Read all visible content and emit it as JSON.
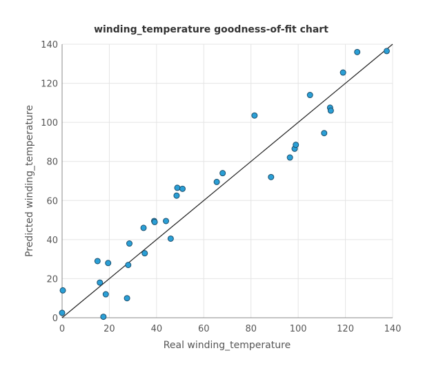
{
  "chart_data": {
    "type": "scatter",
    "title": "winding_temperature goodness-of-fit chart",
    "xlabel": "Real winding_temperature",
    "ylabel": "Predicted winding_temperature",
    "xlim": [
      0,
      140
    ],
    "ylim": [
      0,
      140
    ],
    "xticks": [
      0,
      20,
      40,
      60,
      80,
      100,
      120,
      140
    ],
    "yticks": [
      0,
      20,
      40,
      60,
      80,
      100,
      120,
      140
    ],
    "grid": true,
    "fit_line": {
      "x": [
        0,
        140
      ],
      "y": [
        0,
        140
      ]
    },
    "points": [
      {
        "x": 0,
        "y": 2.5
      },
      {
        "x": 0.3,
        "y": 14
      },
      {
        "x": 15,
        "y": 29
      },
      {
        "x": 16,
        "y": 18
      },
      {
        "x": 17.5,
        "y": 0.5
      },
      {
        "x": 18.5,
        "y": 12
      },
      {
        "x": 19.5,
        "y": 28
      },
      {
        "x": 27.5,
        "y": 10
      },
      {
        "x": 28,
        "y": 27
      },
      {
        "x": 28.5,
        "y": 38
      },
      {
        "x": 34.5,
        "y": 46
      },
      {
        "x": 35,
        "y": 33
      },
      {
        "x": 39,
        "y": 49.5
      },
      {
        "x": 39.2,
        "y": 49
      },
      {
        "x": 44,
        "y": 49.5
      },
      {
        "x": 46,
        "y": 40.5
      },
      {
        "x": 48.5,
        "y": 62.5
      },
      {
        "x": 48.8,
        "y": 66.5
      },
      {
        "x": 51,
        "y": 66
      },
      {
        "x": 65.5,
        "y": 69.5
      },
      {
        "x": 68,
        "y": 74
      },
      {
        "x": 81.5,
        "y": 103.5
      },
      {
        "x": 88.5,
        "y": 72
      },
      {
        "x": 96.5,
        "y": 82
      },
      {
        "x": 98.5,
        "y": 86.5
      },
      {
        "x": 99,
        "y": 88.5
      },
      {
        "x": 105,
        "y": 114
      },
      {
        "x": 111,
        "y": 94.5
      },
      {
        "x": 113.5,
        "y": 107.5
      },
      {
        "x": 113.8,
        "y": 106
      },
      {
        "x": 119,
        "y": 125.5
      },
      {
        "x": 125,
        "y": 136
      },
      {
        "x": 137.5,
        "y": 136.5
      }
    ]
  }
}
